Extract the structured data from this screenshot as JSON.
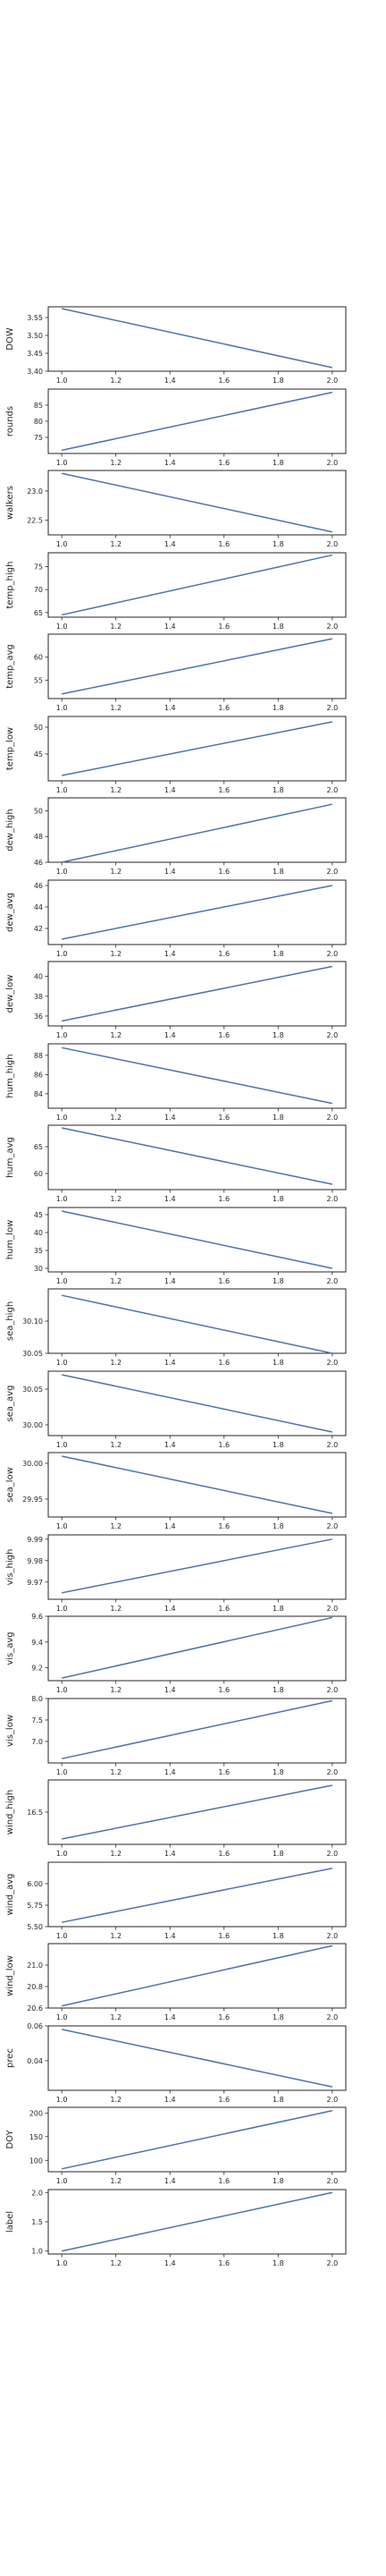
{
  "colors": {
    "line": "#4c72b0",
    "axis": "#262626"
  },
  "chart_data": {
    "type": "line",
    "x_ticks": [
      1.0,
      1.2,
      1.4,
      1.6,
      1.8,
      2.0
    ],
    "x_tick_labels": [
      "1.0",
      "1.2",
      "1.4",
      "1.6",
      "1.8",
      "2.0"
    ],
    "x_range": [
      0.95,
      2.05
    ],
    "grid": false,
    "panels": [
      {
        "ylabel": "DOW",
        "x": [
          1,
          2
        ],
        "y": [
          3.575,
          3.41
        ],
        "ylim": [
          3.4,
          3.58
        ],
        "yticks": [
          3.4,
          3.45,
          3.5,
          3.55
        ],
        "ytick_labels": [
          "3.40",
          "3.45",
          "3.50",
          "3.55"
        ]
      },
      {
        "ylabel": "rounds",
        "x": [
          1,
          2
        ],
        "y": [
          71,
          89
        ],
        "ylim": [
          70,
          90
        ],
        "yticks": [
          75,
          80,
          85
        ],
        "ytick_labels": [
          "75",
          "80",
          "85"
        ]
      },
      {
        "ylabel": "walkers",
        "x": [
          1,
          2
        ],
        "y": [
          23.3,
          22.3
        ],
        "ylim": [
          22.25,
          23.35
        ],
        "yticks": [
          22.5,
          23.0
        ],
        "ytick_labels": [
          "22.5",
          "23.0"
        ]
      },
      {
        "ylabel": "temp_high",
        "x": [
          1,
          2
        ],
        "y": [
          64.5,
          77.5
        ],
        "ylim": [
          64,
          78
        ],
        "yticks": [
          65,
          70,
          75
        ],
        "ytick_labels": [
          "65",
          "70",
          "75"
        ]
      },
      {
        "ylabel": "temp_avg",
        "x": [
          1,
          2
        ],
        "y": [
          52,
          64
        ],
        "ylim": [
          51,
          65
        ],
        "yticks": [
          55,
          60
        ],
        "ytick_labels": [
          "55",
          "60"
        ]
      },
      {
        "ylabel": "temp_low",
        "x": [
          1,
          2
        ],
        "y": [
          41,
          51
        ],
        "ylim": [
          40,
          52
        ],
        "yticks": [
          45,
          50
        ],
        "ytick_labels": [
          "45",
          "50"
        ]
      },
      {
        "ylabel": "dew_high",
        "x": [
          1,
          2
        ],
        "y": [
          46,
          50.5
        ],
        "ylim": [
          46,
          51
        ],
        "yticks": [
          46,
          48,
          50
        ],
        "ytick_labels": [
          "46",
          "48",
          "50"
        ]
      },
      {
        "ylabel": "dew_avg",
        "x": [
          1,
          2
        ],
        "y": [
          41,
          46
        ],
        "ylim": [
          40.5,
          46.5
        ],
        "yticks": [
          42,
          44,
          46
        ],
        "ytick_labels": [
          "42",
          "44",
          "46"
        ]
      },
      {
        "ylabel": "dew_low",
        "x": [
          1,
          2
        ],
        "y": [
          35.5,
          41
        ],
        "ylim": [
          35,
          41.5
        ],
        "yticks": [
          36,
          38,
          40
        ],
        "ytick_labels": [
          "36",
          "38",
          "40"
        ]
      },
      {
        "ylabel": "hum_high",
        "x": [
          1,
          2
        ],
        "y": [
          88.8,
          83
        ],
        "ylim": [
          82.5,
          89.2
        ],
        "yticks": [
          84,
          86,
          88
        ],
        "ytick_labels": [
          "84",
          "86",
          "88"
        ]
      },
      {
        "ylabel": "hum_avg",
        "x": [
          1,
          2
        ],
        "y": [
          68.5,
          58
        ],
        "ylim": [
          57,
          69
        ],
        "yticks": [
          60,
          65
        ],
        "ytick_labels": [
          "60",
          "65"
        ]
      },
      {
        "ylabel": "hum_low",
        "x": [
          1,
          2
        ],
        "y": [
          46,
          30
        ],
        "ylim": [
          29,
          47
        ],
        "yticks": [
          30,
          35,
          40,
          45
        ],
        "ytick_labels": [
          "30",
          "35",
          "40",
          "45"
        ]
      },
      {
        "ylabel": "sea_high",
        "x": [
          1,
          2
        ],
        "y": [
          30.14,
          30.05
        ],
        "ylim": [
          30.05,
          30.15
        ],
        "yticks": [
          30.05,
          30.1
        ],
        "ytick_labels": [
          "30.05",
          "30.10"
        ]
      },
      {
        "ylabel": "sea_avg",
        "x": [
          1,
          2
        ],
        "y": [
          30.07,
          29.99
        ],
        "ylim": [
          29.985,
          30.075
        ],
        "yticks": [
          30.0,
          30.05
        ],
        "ytick_labels": [
          "30.00",
          "30.05"
        ]
      },
      {
        "ylabel": "sea_low",
        "x": [
          1,
          2
        ],
        "y": [
          30.01,
          29.93
        ],
        "ylim": [
          29.925,
          30.015
        ],
        "yticks": [
          29.95,
          30.0
        ],
        "ytick_labels": [
          "29.95",
          "30.00"
        ]
      },
      {
        "ylabel": "vis_high",
        "x": [
          1,
          2
        ],
        "y": [
          9.965,
          9.99
        ],
        "ylim": [
          9.962,
          9.992
        ],
        "yticks": [
          9.97,
          9.98,
          9.99
        ],
        "ytick_labels": [
          "9.97",
          "9.98",
          "9.99"
        ]
      },
      {
        "ylabel": "vis_avg",
        "x": [
          1,
          2
        ],
        "y": [
          9.12,
          9.59
        ],
        "ylim": [
          9.1,
          9.6
        ],
        "yticks": [
          9.2,
          9.4,
          9.6
        ],
        "ytick_labels": [
          "9.2",
          "9.4",
          "9.6"
        ]
      },
      {
        "ylabel": "vis_low",
        "x": [
          1,
          2
        ],
        "y": [
          6.6,
          7.95
        ],
        "ylim": [
          6.5,
          8.0
        ],
        "yticks": [
          7.0,
          7.5,
          8.0
        ],
        "ytick_labels": [
          "7.0",
          "7.5",
          "8.0"
        ]
      },
      {
        "ylabel": "wind_high",
        "x": [
          1,
          2
        ],
        "y": [
          16.25,
          16.75
        ],
        "ylim": [
          16.2,
          16.8
        ],
        "yticks": [
          16.5
        ],
        "ytick_labels": [
          "16.5"
        ]
      },
      {
        "ylabel": "wind_avg",
        "x": [
          1,
          2
        ],
        "y": [
          5.55,
          6.18
        ],
        "ylim": [
          5.5,
          6.25
        ],
        "yticks": [
          5.5,
          5.75,
          6.0
        ],
        "ytick_labels": [
          "5.50",
          "5.75",
          "6.00"
        ]
      },
      {
        "ylabel": "wind_low",
        "x": [
          1,
          2
        ],
        "y": [
          20.62,
          21.18
        ],
        "ylim": [
          20.6,
          21.2
        ],
        "yticks": [
          20.6,
          20.8,
          21.0
        ],
        "ytick_labels": [
          "20.6",
          "20.8",
          "21.0"
        ]
      },
      {
        "ylabel": "prec",
        "x": [
          1,
          2
        ],
        "y": [
          0.058,
          0.025
        ],
        "ylim": [
          0.023,
          0.06
        ],
        "yticks": [
          0.04,
          0.06
        ],
        "ytick_labels": [
          "0.04",
          "0.06"
        ]
      },
      {
        "ylabel": "DOY",
        "x": [
          1,
          2
        ],
        "y": [
          82,
          205
        ],
        "ylim": [
          76,
          212
        ],
        "yticks": [
          100,
          150,
          200
        ],
        "ytick_labels": [
          "100",
          "150",
          "200"
        ]
      },
      {
        "ylabel": "label",
        "x": [
          1,
          2
        ],
        "y": [
          1.0,
          2.0
        ],
        "ylim": [
          0.95,
          2.05
        ],
        "yticks": [
          1.0,
          1.5,
          2.0
        ],
        "ytick_labels": [
          "1.0",
          "1.5",
          "2.0"
        ]
      }
    ]
  }
}
